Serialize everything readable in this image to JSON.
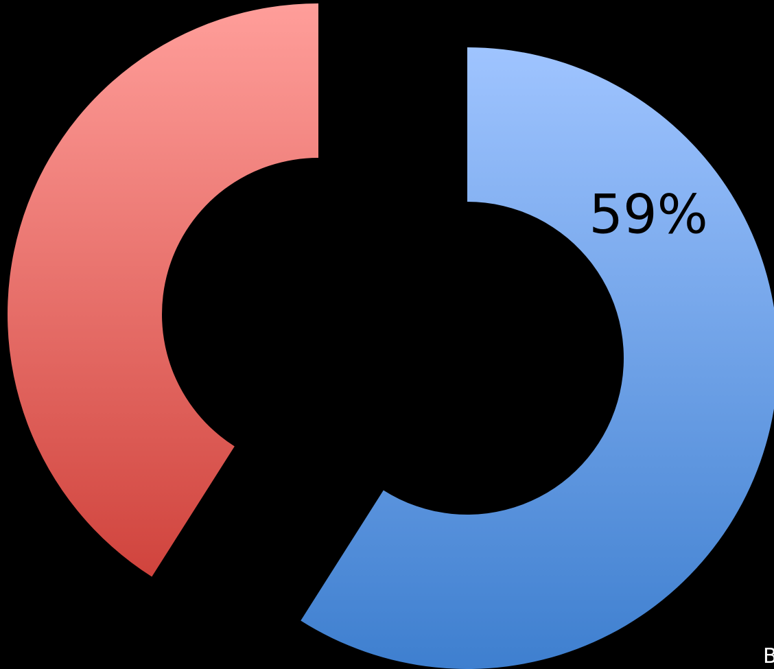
{
  "chart_data": {
    "type": "pie",
    "variant": "exploded-donut",
    "slices": [
      {
        "value": 59,
        "label": "59%",
        "color_top": "#9fc4ff",
        "color_bottom": "#3e7fcf"
      },
      {
        "value": 41,
        "label": "",
        "color_top": "#ff9e9a",
        "color_bottom": "#cc3c35"
      }
    ],
    "background": "#000000"
  },
  "corner_text": "B"
}
